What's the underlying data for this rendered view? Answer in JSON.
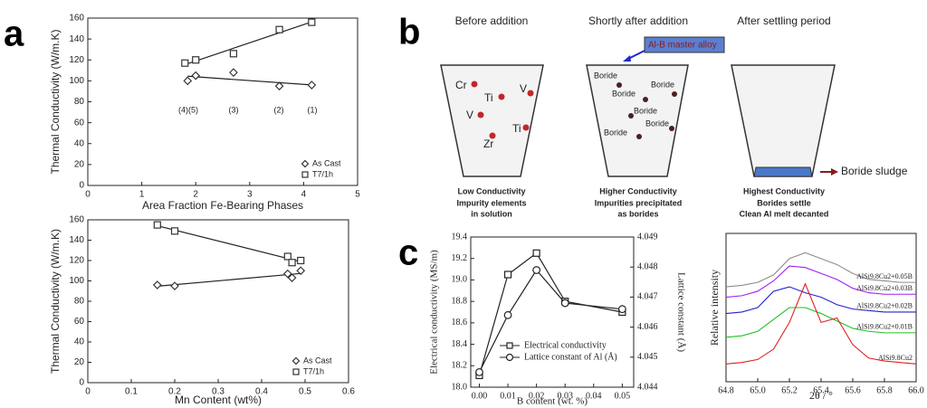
{
  "panel_labels": [
    "a",
    "b",
    "c"
  ],
  "diagram": {
    "steps": [
      {
        "title": "Before addition",
        "labels": [
          "Cr",
          "Ti",
          "V",
          "V",
          "Ti",
          "Zr"
        ],
        "caption": [
          "Low Conductivity",
          "Impurity elements",
          "in solution"
        ]
      },
      {
        "title": "Shortly after addition",
        "labels": [
          "Boride",
          "Boride",
          "Boride",
          "Boride",
          "Boride",
          "Boride"
        ],
        "caption": [
          "Higher Conductivity",
          "Impurities precipitated",
          "as borides"
        ]
      },
      {
        "title": "After settling period",
        "labels": [],
        "caption": [
          "Highest Conductivity",
          "Borides settle",
          "Clean Al melt decanted"
        ]
      }
    ],
    "master_alloy": "Al-B master alloy",
    "sludge": "Boride sludge"
  },
  "chart_data": [
    {
      "type": "scatter",
      "xlabel": "Area Fraction Fe-Bearing Phases",
      "ylabel": "Thermal Conductivity (W/m.K)",
      "xlim": [
        0,
        5
      ],
      "xticks": [
        0,
        1,
        2,
        3,
        4,
        5
      ],
      "ylim": [
        0,
        160
      ],
      "yticks": [
        0,
        20,
        40,
        60,
        80,
        100,
        120,
        140,
        160
      ],
      "series": [
        {
          "name": "As Cast",
          "marker": "diamond",
          "color": "#333333",
          "x": [
            1.85,
            2.0,
            2.7,
            3.55,
            4.15
          ],
          "values": [
            100,
            105,
            108,
            95,
            96
          ]
        },
        {
          "name": "T7/1h",
          "marker": "square",
          "color": "#333333",
          "x": [
            1.8,
            2.0,
            2.7,
            3.55,
            4.15
          ],
          "values": [
            117,
            120,
            126,
            149,
            156
          ]
        }
      ],
      "annotations": [
        "(4)(5)",
        "(3)",
        "(2)",
        "(1)"
      ],
      "fit": true,
      "legend": "lower right"
    },
    {
      "type": "scatter",
      "xlabel": "Mn Content (wt%)",
      "ylabel": "Thermal Conductivity (W/m.K)",
      "xlim": [
        0,
        0.6
      ],
      "xticks": [
        0,
        0.1,
        0.2,
        0.3,
        0.4,
        0.5,
        0.6
      ],
      "ylim": [
        0,
        160
      ],
      "yticks": [
        0,
        20,
        40,
        60,
        80,
        100,
        120,
        140,
        160
      ],
      "series": [
        {
          "name": "As Cast",
          "marker": "diamond",
          "color": "#333333",
          "x": [
            0.16,
            0.2,
            0.46,
            0.47,
            0.49
          ],
          "values": [
            96,
            95,
            107,
            103,
            110
          ]
        },
        {
          "name": "T7/1h",
          "marker": "square",
          "color": "#333333",
          "x": [
            0.16,
            0.2,
            0.46,
            0.47,
            0.49
          ],
          "values": [
            155,
            149,
            124,
            118,
            120
          ]
        }
      ],
      "fit": true,
      "legend": "lower right"
    },
    {
      "type": "line",
      "xlabel": "B content (wt. %)",
      "ylabel": "Electrical conductivity (MS/m)",
      "y2label": "Lattice constant (Å)",
      "x": [
        0,
        0.01,
        0.02,
        0.03,
        0.05
      ],
      "xlim": [
        -0.003,
        0.054
      ],
      "xticks": [
        {
          "value": 0,
          "label": "0.00"
        },
        {
          "value": 0.01,
          "label": "0.01"
        },
        {
          "value": 0.02,
          "label": "0.02"
        },
        {
          "value": 0.03,
          "label": "0.03"
        },
        {
          "value": 0.04,
          "label": "0.04"
        },
        {
          "value": 0.05,
          "label": "0.05"
        }
      ],
      "ylim": [
        18.0,
        19.4
      ],
      "yticks": [
        {
          "value": 18,
          "label": "18.0"
        },
        18.2,
        18.4,
        18.6,
        18.8,
        {
          "value": 19,
          "label": "19.0"
        },
        19.2,
        19.4
      ],
      "y2lim": [
        4.044,
        4.049
      ],
      "y2ticks": [
        4.044,
        4.045,
        4.046,
        4.047,
        4.048,
        4.049
      ],
      "series": [
        {
          "name": "Electrical conductivity",
          "marker": "square",
          "color": "#222222",
          "values": [
            18.11,
            19.05,
            19.25,
            18.8,
            18.7
          ]
        },
        {
          "name": "Lattice constant of Al (Å)",
          "marker": "circle",
          "color": "#222222",
          "axis": "y2",
          "values": [
            4.0445,
            4.0464,
            4.0479,
            4.0468,
            4.0466
          ]
        }
      ],
      "legend": "lower right"
    },
    {
      "type": "line",
      "xlabel": "2θ / °",
      "ylabel": "Relative intensity",
      "x": [
        64.8,
        64.9,
        65.0,
        65.1,
        65.2,
        65.3,
        65.4,
        65.5,
        65.6,
        65.7,
        65.8,
        65.9,
        66.0
      ],
      "xlim": [
        64.8,
        66.0
      ],
      "xticks": [
        64.8,
        {
          "value": 65,
          "label": "65.0"
        },
        65.2,
        65.4,
        65.6,
        65.8,
        {
          "value": 66,
          "label": "66.0"
        }
      ],
      "ylim": [
        0,
        10
      ],
      "series": [
        {
          "name": "AlSi9.8Cu2+0.05B",
          "color": "#8c8c8c",
          "values": [
            6.4,
            6.5,
            6.7,
            7.2,
            8.3,
            8.7,
            8.3,
            7.9,
            7.3,
            6.9,
            6.8,
            6.7,
            6.7
          ]
        },
        {
          "name": "AlSi9.8Cu2+0.03B",
          "color": "#a020f0",
          "values": [
            5.7,
            5.8,
            6.1,
            6.8,
            7.8,
            7.7,
            7.3,
            6.9,
            6.3,
            6.0,
            5.9,
            5.9,
            5.9
          ]
        },
        {
          "name": "AlSi9.8Cu2+0.02B",
          "color": "#2020d0",
          "values": [
            4.6,
            4.7,
            5.0,
            6.1,
            6.4,
            6.0,
            5.7,
            5.2,
            4.9,
            4.8,
            4.7,
            4.7,
            4.7
          ]
        },
        {
          "name": "AlSi9.8Cu2+0.01B",
          "color": "#22c022",
          "values": [
            3.0,
            3.1,
            3.4,
            4.2,
            5.0,
            5.0,
            4.6,
            4.1,
            3.6,
            3.4,
            3.3,
            3.3,
            3.3
          ]
        },
        {
          "name": "AlSi9.8Cu2",
          "color": "#e02020",
          "values": [
            1.2,
            1.3,
            1.5,
            2.2,
            4.0,
            6.6,
            4.0,
            4.3,
            2.5,
            1.6,
            1.4,
            1.3,
            1.2
          ]
        }
      ],
      "legend": "inline"
    }
  ]
}
